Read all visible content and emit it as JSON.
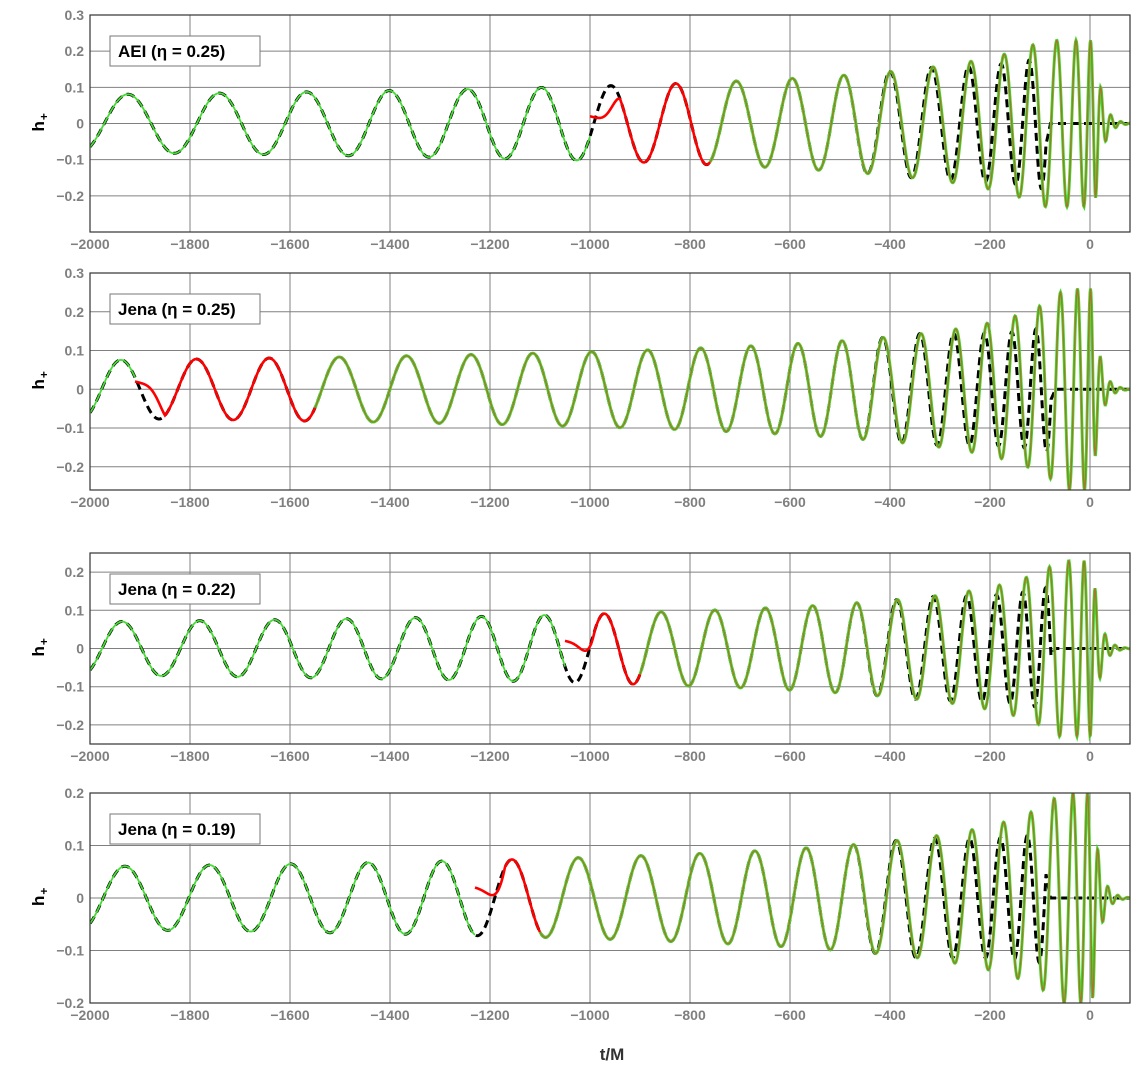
{
  "figure": {
    "xlabel": "t/M",
    "ylabel_main": "h",
    "ylabel_sub": "+"
  },
  "colors": {
    "numerical": "#000000",
    "model_early": "#ff0000",
    "model_late": "#44dd33",
    "overlap_late": "#a07a28",
    "grid": "#808080",
    "tick_label": "#7f7f7f",
    "frame": "#333333"
  },
  "chart_data": [
    {
      "type": "line",
      "title": "",
      "annotation": "AEI (η = 0.25)",
      "xlabel": "",
      "ylabel": "h+",
      "xlim": [
        -2000,
        80
      ],
      "ylim": [
        -0.3,
        0.3
      ],
      "xticks": [
        -2000,
        -1800,
        -1600,
        -1400,
        -1200,
        -1000,
        -800,
        -600,
        -400,
        -200,
        0
      ],
      "yticks": [
        -0.2,
        -0.1,
        0,
        0.1,
        0.2,
        0.3
      ],
      "xtick_labels": [
        "−2000",
        "−1800",
        "−1600",
        "−1400",
        "−1200",
        "−1000",
        "−800",
        "−600",
        "−400",
        "−200",
        "0"
      ],
      "ytick_labels": [
        "−0.2",
        "−0.1",
        "0",
        "0.1",
        "0.2",
        "0.3"
      ],
      "grid": true,
      "peak_time": 10,
      "numerical_early_amplitude": 0.08,
      "numerical_peak_amplitude": 0.17,
      "numerical_end_time": -80,
      "model_early_range": [
        -2000,
        -1000
      ],
      "model_red_range": [
        -1000,
        -760
      ],
      "model_peak_amplitude": 0.23,
      "model_end_time": 80,
      "period_early": 190,
      "period_late": 20
    },
    {
      "type": "line",
      "title": "",
      "annotation": "Jena (η = 0.25)",
      "xlabel": "",
      "ylabel": "h+",
      "xlim": [
        -2000,
        80
      ],
      "ylim": [
        -0.26,
        0.3
      ],
      "xticks": [
        -2000,
        -1800,
        -1600,
        -1400,
        -1200,
        -1000,
        -800,
        -600,
        -400,
        -200,
        0
      ],
      "yticks": [
        -0.2,
        -0.1,
        0,
        0.1,
        0.2,
        0.3
      ],
      "xtick_labels": [
        "−2000",
        "−1800",
        "−1600",
        "−1400",
        "−1200",
        "−1000",
        "−800",
        "−600",
        "−400",
        "−200",
        "0"
      ],
      "ytick_labels": [
        "−0.2",
        "−0.1",
        "0",
        "0.1",
        "0.2",
        "0.3"
      ],
      "grid": true,
      "peak_time": 5,
      "numerical_early_amplitude": 0.075,
      "numerical_peak_amplitude": 0.17,
      "numerical_end_time": -70,
      "model_early_range": [
        -2000,
        -1910
      ],
      "model_red_range": [
        -1910,
        -1550
      ],
      "model_peak_amplitude": 0.26,
      "model_end_time": 80,
      "period_early": 155,
      "period_late": 20
    },
    {
      "type": "line",
      "title": "",
      "annotation": "Jena (η = 0.22)",
      "xlabel": "",
      "ylabel": "h+",
      "xlim": [
        -2000,
        80
      ],
      "ylim": [
        -0.25,
        0.25
      ],
      "xticks": [
        -2000,
        -1800,
        -1600,
        -1400,
        -1200,
        -1000,
        -800,
        -600,
        -400,
        -200,
        0
      ],
      "yticks": [
        -0.2,
        -0.1,
        0,
        0.1,
        0.2
      ],
      "xtick_labels": [
        "−2000",
        "−1800",
        "−1600",
        "−1400",
        "−1200",
        "−1000",
        "−800",
        "−600",
        "−400",
        "−200",
        "0"
      ],
      "ytick_labels": [
        "−0.2",
        "−0.1",
        "0",
        "0.1",
        "0.2"
      ],
      "grid": true,
      "peak_time": 5,
      "numerical_early_amplitude": 0.07,
      "numerical_peak_amplitude": 0.16,
      "numerical_end_time": -70,
      "model_early_range": [
        -2000,
        -1050
      ],
      "model_red_range": [
        -1050,
        -900
      ],
      "model_peak_amplitude": 0.23,
      "model_end_time": 80,
      "period_early": 160,
      "period_late": 20
    },
    {
      "type": "line",
      "title": "",
      "annotation": "Jena (η = 0.19)",
      "xlabel": "t/M",
      "ylabel": "h+",
      "xlim": [
        -2000,
        80
      ],
      "ylim": [
        -0.2,
        0.2
      ],
      "xticks": [
        -2000,
        -1800,
        -1600,
        -1400,
        -1200,
        -1000,
        -800,
        -600,
        -400,
        -200,
        0
      ],
      "yticks": [
        -0.2,
        -0.1,
        0,
        0.1,
        0.2
      ],
      "xtick_labels": [
        "−2000",
        "−1800",
        "−1600",
        "−1400",
        "−1200",
        "−1000",
        "−800",
        "−600",
        "−400",
        "−200",
        "0"
      ],
      "ytick_labels": [
        "−0.2",
        "−0.1",
        "0",
        "0.1",
        "0.2"
      ],
      "grid": true,
      "peak_time": 5,
      "numerical_early_amplitude": 0.06,
      "numerical_peak_amplitude": 0.13,
      "numerical_end_time": -80,
      "model_early_range": [
        -2000,
        -1230
      ],
      "model_red_range": [
        -1230,
        -1100
      ],
      "model_peak_amplitude": 0.2,
      "model_end_time": 80,
      "period_early": 175,
      "period_late": 20
    }
  ]
}
